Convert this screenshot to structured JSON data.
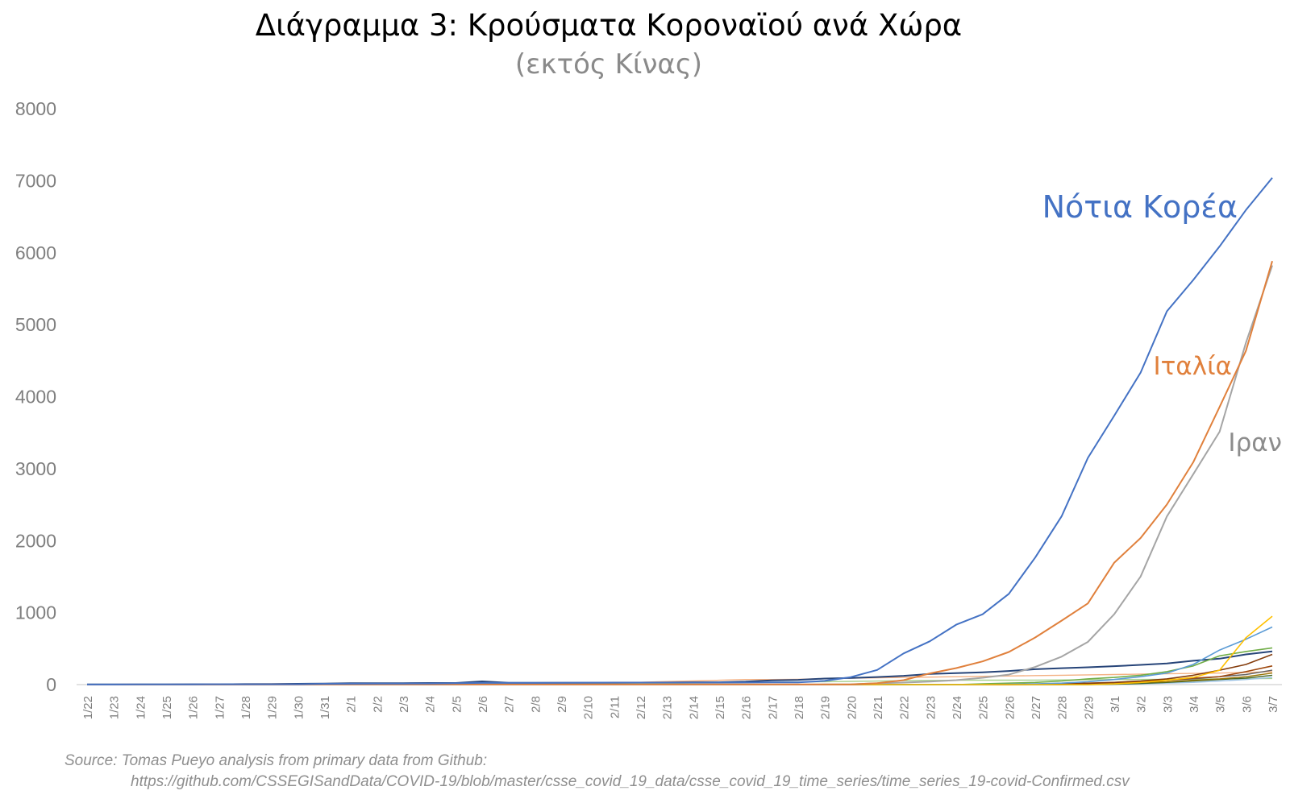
{
  "chart_data": {
    "type": "line",
    "title": "Διάγραμμα 3: Κρούσματα Κοροναϊού ανά Χώρα",
    "subtitle": "(εκτός Κίνας)",
    "xlabel": "",
    "ylabel": "",
    "ylim": [
      0,
      8000
    ],
    "yticks": [
      "0",
      "1000",
      "2000",
      "3000",
      "4000",
      "5000",
      "6000",
      "7000",
      "8000"
    ],
    "grid": false,
    "x": [
      "1/22",
      "1/23",
      "1/24",
      "1/25",
      "1/26",
      "1/27",
      "1/28",
      "1/29",
      "1/30",
      "1/31",
      "2/1",
      "2/2",
      "2/3",
      "2/4",
      "2/5",
      "2/6",
      "2/7",
      "2/8",
      "2/9",
      "2/10",
      "2/11",
      "2/12",
      "2/13",
      "2/14",
      "2/15",
      "2/16",
      "2/17",
      "2/18",
      "2/19",
      "2/20",
      "2/21",
      "2/22",
      "2/23",
      "2/24",
      "2/25",
      "2/26",
      "2/27",
      "2/28",
      "2/29",
      "3/1",
      "3/2",
      "3/3",
      "3/4",
      "3/5",
      "3/6",
      "3/7"
    ],
    "series": [
      {
        "name": "Νότια Κορέα",
        "color": "#4472c4",
        "width": 2,
        "values": [
          1,
          1,
          2,
          2,
          3,
          4,
          4,
          4,
          4,
          11,
          12,
          15,
          15,
          16,
          19,
          23,
          24,
          24,
          25,
          27,
          28,
          28,
          28,
          28,
          28,
          29,
          30,
          31,
          51,
          104,
          204,
          433,
          602,
          833,
          977,
          1261,
          1766,
          2337,
          3150,
          3736,
          4335,
          5186,
          5621,
          6088,
          6593,
          7041
        ]
      },
      {
        "name": "Ιταλία",
        "color": "#e0803c",
        "width": 2,
        "values": [
          0,
          0,
          0,
          0,
          0,
          0,
          0,
          0,
          0,
          2,
          2,
          2,
          2,
          2,
          2,
          2,
          3,
          3,
          3,
          3,
          3,
          3,
          3,
          3,
          3,
          3,
          3,
          3,
          3,
          3,
          20,
          62,
          155,
          229,
          322,
          453,
          655,
          888,
          1128,
          1694,
          2036,
          2502,
          3089,
          3858,
          4636,
          5883
        ]
      },
      {
        "name": "Ιραν",
        "color": "#a5a5a5",
        "width": 2,
        "values": [
          0,
          0,
          0,
          0,
          0,
          0,
          0,
          0,
          0,
          0,
          0,
          0,
          0,
          0,
          0,
          0,
          0,
          0,
          0,
          0,
          0,
          0,
          0,
          0,
          0,
          0,
          0,
          0,
          2,
          5,
          18,
          28,
          43,
          61,
          95,
          139,
          245,
          388,
          593,
          978,
          1501,
          2336,
          2922,
          3513,
          4747,
          5823
        ]
      },
      {
        "name": "",
        "color": "#ffc000",
        "width": 1.6,
        "values": [
          0,
          0,
          0,
          0,
          0,
          0,
          0,
          0,
          0,
          0,
          0,
          0,
          0,
          0,
          0,
          0,
          0,
          0,
          0,
          0,
          0,
          0,
          0,
          0,
          0,
          0,
          0,
          0,
          0,
          0,
          0,
          0,
          0,
          0,
          0,
          0,
          0,
          0,
          0,
          10,
          30,
          60,
          100,
          200,
          650,
          950
        ]
      },
      {
        "name": "",
        "color": "#5b9bd5",
        "width": 1.6,
        "values": [
          0,
          0,
          0,
          0,
          0,
          0,
          0,
          0,
          0,
          0,
          0,
          0,
          0,
          0,
          0,
          0,
          0,
          0,
          0,
          0,
          0,
          0,
          0,
          0,
          0,
          0,
          0,
          0,
          0,
          0,
          0,
          0,
          0,
          0,
          0,
          5,
          10,
          20,
          40,
          70,
          110,
          160,
          280,
          480,
          630,
          800
        ]
      },
      {
        "name": "",
        "color": "#70ad47",
        "width": 1.6,
        "values": [
          0,
          0,
          0,
          0,
          0,
          0,
          0,
          0,
          0,
          0,
          0,
          0,
          0,
          0,
          0,
          0,
          0,
          0,
          0,
          0,
          0,
          0,
          0,
          0,
          0,
          0,
          0,
          0,
          0,
          0,
          0,
          0,
          0,
          0,
          10,
          20,
          30,
          50,
          80,
          100,
          130,
          180,
          260,
          400,
          460,
          510
        ]
      },
      {
        "name": "",
        "color": "#264478",
        "width": 2,
        "values": [
          2,
          2,
          2,
          2,
          4,
          4,
          7,
          7,
          11,
          15,
          20,
          20,
          20,
          22,
          22,
          45,
          25,
          25,
          26,
          26,
          26,
          28,
          29,
          33,
          33,
          41,
          59,
          66,
          84,
          93,
          105,
          122,
          148,
          159,
          170,
          189,
          214,
          228,
          241,
          256,
          274,
          293,
          331,
          360,
          420,
          461
        ]
      },
      {
        "name": "",
        "color": "#843c0c",
        "width": 1.6,
        "values": [
          0,
          0,
          0,
          0,
          0,
          0,
          0,
          0,
          0,
          0,
          0,
          0,
          0,
          0,
          0,
          0,
          0,
          0,
          0,
          0,
          0,
          0,
          0,
          0,
          0,
          0,
          0,
          0,
          0,
          0,
          0,
          0,
          0,
          0,
          0,
          0,
          5,
          10,
          15,
          30,
          50,
          80,
          130,
          200,
          280,
          420
        ]
      },
      {
        "name": "",
        "color": "#9e480e",
        "width": 1.6,
        "values": [
          0,
          0,
          0,
          0,
          0,
          0,
          0,
          0,
          0,
          0,
          0,
          0,
          0,
          0,
          0,
          0,
          0,
          0,
          0,
          0,
          0,
          0,
          0,
          0,
          0,
          0,
          0,
          0,
          0,
          0,
          0,
          0,
          0,
          0,
          0,
          0,
          5,
          10,
          20,
          30,
          40,
          60,
          90,
          110,
          180,
          260
        ]
      },
      {
        "name": "",
        "color": "#636363",
        "width": 1.4,
        "values": [
          0,
          0,
          0,
          0,
          0,
          0,
          0,
          0,
          0,
          0,
          0,
          0,
          0,
          0,
          0,
          0,
          0,
          0,
          0,
          0,
          0,
          0,
          0,
          0,
          0,
          0,
          0,
          0,
          0,
          0,
          0,
          0,
          0,
          0,
          0,
          0,
          0,
          0,
          10,
          20,
          40,
          60,
          80,
          110,
          140,
          200
        ]
      },
      {
        "name": "",
        "color": "#997300",
        "width": 1.4,
        "values": [
          0,
          0,
          0,
          0,
          0,
          0,
          0,
          0,
          0,
          0,
          0,
          0,
          0,
          0,
          0,
          0,
          0,
          0,
          0,
          0,
          0,
          0,
          0,
          0,
          0,
          0,
          0,
          0,
          0,
          0,
          0,
          0,
          0,
          0,
          0,
          0,
          2,
          5,
          10,
          20,
          30,
          40,
          60,
          80,
          110,
          160
        ]
      },
      {
        "name": "",
        "color": "#43682b",
        "width": 1.4,
        "values": [
          0,
          0,
          0,
          0,
          0,
          0,
          0,
          0,
          0,
          0,
          0,
          0,
          0,
          0,
          0,
          0,
          0,
          0,
          0,
          0,
          0,
          0,
          0,
          0,
          0,
          0,
          0,
          0,
          0,
          0,
          0,
          0,
          0,
          0,
          0,
          0,
          0,
          0,
          0,
          5,
          15,
          30,
          50,
          70,
          90,
          130
        ]
      },
      {
        "name": "",
        "color": "#9dc3e6",
        "width": 1.4,
        "values": [
          0,
          0,
          0,
          0,
          0,
          0,
          0,
          0,
          0,
          0,
          0,
          0,
          0,
          0,
          0,
          0,
          0,
          0,
          0,
          0,
          0,
          0,
          0,
          0,
          0,
          0,
          0,
          0,
          0,
          0,
          0,
          0,
          0,
          0,
          0,
          0,
          0,
          0,
          0,
          5,
          10,
          20,
          30,
          50,
          70,
          100
        ]
      },
      {
        "name": "",
        "color": "#a9d18e",
        "width": 1.4,
        "values": [
          1,
          1,
          1,
          1,
          2,
          2,
          2,
          3,
          4,
          4,
          4,
          6,
          7,
          7,
          7,
          7,
          10,
          10,
          10,
          10,
          13,
          15,
          17,
          21,
          23,
          27,
          33,
          36,
          40,
          45,
          49,
          55,
          58,
          60,
          61,
          62,
          63,
          65,
          67,
          70,
          72,
          74,
          78,
          80,
          82,
          85
        ]
      },
      {
        "name": "",
        "color": "#f4b183",
        "width": 1.4,
        "values": [
          2,
          3,
          5,
          5,
          7,
          8,
          10,
          11,
          14,
          15,
          16,
          16,
          18,
          22,
          24,
          25,
          25,
          26,
          28,
          28,
          33,
          33,
          42,
          50,
          60,
          70,
          71,
          74,
          84,
          90,
          95,
          100,
          104,
          110,
          115,
          120,
          125,
          130,
          135,
          140,
          145,
          150,
          155,
          160,
          170,
          180
        ]
      }
    ],
    "annotations": [
      {
        "text": "Νότια Κορέα",
        "color": "#4472c4"
      },
      {
        "text": "Ιταλία",
        "color": "#e0803c"
      },
      {
        "text": "Ιραν",
        "color": "#8c8c8c"
      }
    ]
  },
  "source": {
    "line1": "Source: Tomas Pueyo analysis from primary data from Github:",
    "line2": "https://github.com/CSSEGISandData/COVID-19/blob/master/csse_covid_19_data/csse_covid_19_time_series/time_series_19-covid-Confirmed.csv"
  }
}
